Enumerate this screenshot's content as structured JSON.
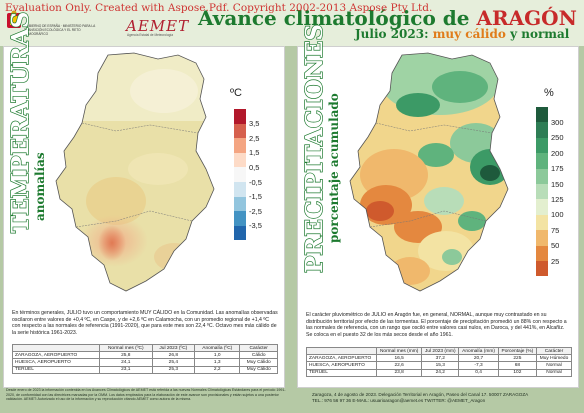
{
  "watermark": "Evaluation Only. Created with Aspose.Pdf. Copyright 2002-2013 Aspose Pty Ltd.",
  "header": {
    "gov_text": "GOBIERNO DE ESPAÑA · MINISTERIO PARA LA TRANSICIÓN ECOLÓGICA Y EL RETO DEMOGRÁFICO",
    "aemet": "AEMET",
    "aemet_sub": "Agencia Estatal de Meteorología",
    "title_a": "Avance climatológico de ",
    "title_b": "ARAGÓN",
    "subtitle_a": "Julio 2023: ",
    "subtitle_b": "muy cálido",
    "subtitle_c": " y ",
    "subtitle_d": "normal"
  },
  "temperature": {
    "vertical_title": "TEMPERATURAS",
    "vertical_sub": "anomalías",
    "unit": "ºC",
    "legend": {
      "labels": [
        "3,5",
        "2,5",
        "1,5",
        "0,5",
        "-0,5",
        "-1,5",
        "-2,5",
        "-3,5"
      ],
      "colors": [
        "#b2182b",
        "#d6604d",
        "#f4a582",
        "#fddbc7",
        "#f7f7f7",
        "#d1e5f0",
        "#92c5de",
        "#4393c3",
        "#2166ac"
      ]
    },
    "text": "En términos generales, JULIO tuvo un comportamiento MUY CÁLIDO en la Comunidad. Las anomalías observadas oscilaron entre valores de +0,4 ºC, en Caspe, y de +2,6 ºC en Calamocha, con un promedio regional de +1,4 ºC con respecto a las normales de referencia (1991-2020), que para este mes son 22,4 ºC. Octavo mes más cálido de la serie histórica 1961-2023.",
    "table": {
      "headers": [
        "",
        "Normal mes (ºC)",
        "Jul 2023 (ºC)",
        "Anomalía (ºC)",
        "Carácter"
      ],
      "rows": [
        [
          "ZARAGOZA, AEROPUERTO",
          "25,8",
          "26,8",
          "1,0",
          "Cálido"
        ],
        [
          "HUESCA, AEROPUERTO",
          "24,1",
          "25,4",
          "1,3",
          "Muy Cálido"
        ],
        [
          "TERUEL",
          "23,1",
          "25,3",
          "2,2",
          "Muy Cálido"
        ]
      ]
    }
  },
  "precipitation": {
    "vertical_title": "PRECIPITACIONES",
    "vertical_sub": "porcentaje acumulado",
    "unit": "%",
    "legend": {
      "labels": [
        "300",
        "250",
        "200",
        "175",
        "150",
        "125",
        "100",
        "75",
        "50",
        "25"
      ],
      "colors": [
        "#1e5a3c",
        "#2e7d55",
        "#3c9a66",
        "#5fb37d",
        "#8cc99a",
        "#b8ddb8",
        "#e3efcf",
        "#f3e3a3",
        "#f0b86c",
        "#e4883f",
        "#cf5a2d"
      ]
    },
    "text": "El carácter pluviométrico de JULIO en Aragón fue, en general, NORMAL, aunque muy contrastado en su distribución territorial por efecto de las tormentas. El porcentaje de precipitación promedió un 88% con respecto a las normales de referencia, con un rango que osciló entre valores casi nulos, en Daroca, y del 441%, en Alcañiz. Se coloca en el puesto 32 de los más secos desde el año 1961.",
    "table": {
      "headers": [
        "",
        "Normal mes (mm)",
        "Jul 2023 (mm)",
        "Anomalía (mm)",
        "Porcentaje (%)",
        "Carácter"
      ],
      "rows": [
        [
          "ZARAGOZA, AEROPUERTO",
          "16,5",
          "37,2",
          "20,7",
          "225",
          "Muy Húmedo"
        ],
        [
          "HUESCA, AEROPUERTO",
          "22,6",
          "15,3",
          "-7,3",
          "68",
          "Normal"
        ],
        [
          "TERUEL",
          "23,8",
          "24,2",
          "0,4",
          "102",
          "Normal"
        ]
      ]
    }
  },
  "footer_left": "Desde enero de 2023 la información contenida en los Avances Climatológicos de AEMET está referida a las nuevas Normales Climatológicas Estándares para el período 1991-2020, de conformidad con las directrices marcadas por la OMM. Los datos empleados para la elaboración de este avance son provisionales y están sujetos a una posterior validación. AEMET: Autorizado el uso de la información y su reproducción citando AEMET como autora de la misma.",
  "footer_right_1": "Zaragoza, 4 de agosto de 2023. Delegación Territorial en Aragón, Paseo del Canal 17. 50007 ZARAGOZA",
  "footer_right_2": "TEL.: 976 56 97 36  E-MAIL: usuarioaragon@aemet.es  TWITTER: @AEMET_Aragon"
}
